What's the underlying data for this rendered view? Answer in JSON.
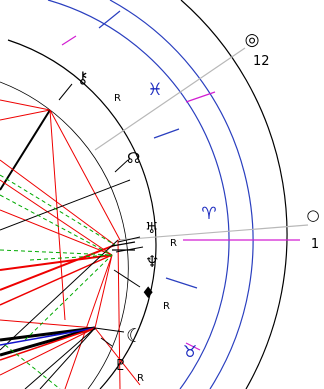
{
  "house_cusps": [
    {
      "number": "12",
      "glyph": "◎"
    },
    {
      "number": "1",
      "glyph": "○"
    }
  ],
  "signs": [
    "♓",
    "♈",
    "♉"
  ],
  "planets": [
    {
      "glyph": "⚷",
      "retro": "R",
      "name": "chiron"
    },
    {
      "glyph": "☊",
      "retro": "",
      "name": "node"
    },
    {
      "glyph": "♅",
      "retro": "R",
      "name": "uranus"
    },
    {
      "glyph": "♆",
      "retro": "R",
      "name": "neptune"
    },
    {
      "glyph": "♦",
      "retro": "R",
      "name": "point"
    },
    {
      "glyph": "☾",
      "retro": "",
      "name": "moon"
    },
    {
      "glyph": "♇",
      "retro": "R",
      "name": "pluto"
    }
  ],
  "colors": {
    "sign_ring": "#2a3fbf",
    "house_line": "#d21ed2",
    "aspect_red": "#ee0000",
    "aspect_green": "#00aa00",
    "aspect_blue": "#1111cc",
    "outer_ring": "#000000",
    "cusp_grey": "#b8b8b8"
  }
}
